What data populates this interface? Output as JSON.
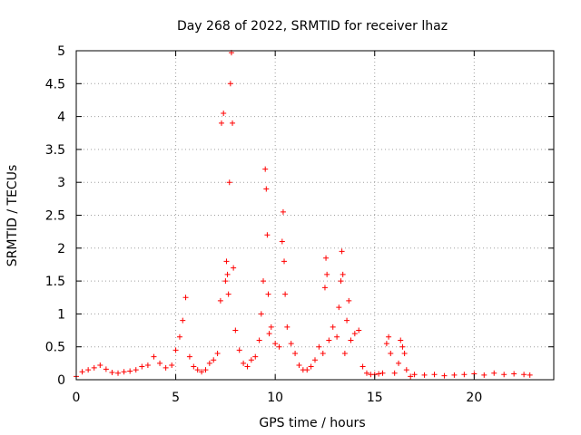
{
  "chart_data": {
    "type": "scatter",
    "title": "Day 268 of 2022, SRMTID for receiver lhaz",
    "xlabel": "GPS time / hours",
    "ylabel": "SRMTID / TECUs",
    "xlim": [
      0,
      24
    ],
    "ylim": [
      0,
      5
    ],
    "xticks": [
      0,
      5,
      10,
      15,
      20
    ],
    "xtick_labels": [
      "0",
      "5",
      "10",
      "15",
      "20"
    ],
    "yticks": [
      0,
      0.5,
      1,
      1.5,
      2,
      2.5,
      3,
      3.5,
      4,
      4.5,
      5
    ],
    "ytick_labels": [
      "0",
      "0.5",
      "1",
      "1.5",
      "2",
      "2.5",
      "3",
      "3.5",
      "4",
      "4.5",
      "5"
    ],
    "grid": true,
    "marker": "+",
    "series": [
      {
        "name": "SRMTID",
        "color": "#ff0000",
        "x": [
          0.0,
          0.3,
          0.6,
          0.9,
          1.2,
          1.5,
          1.8,
          2.1,
          2.4,
          2.7,
          3.0,
          3.3,
          3.6,
          3.9,
          4.2,
          4.5,
          4.8,
          5.0,
          5.2,
          5.35,
          5.5,
          5.7,
          5.9,
          6.1,
          6.3,
          6.5,
          6.7,
          6.9,
          7.1,
          7.25,
          7.3,
          7.4,
          7.5,
          7.55,
          7.6,
          7.65,
          7.7,
          7.75,
          7.8,
          7.85,
          7.9,
          8.0,
          8.2,
          8.4,
          8.6,
          8.8,
          9.0,
          9.2,
          9.3,
          9.4,
          9.5,
          9.55,
          9.6,
          9.65,
          9.7,
          9.8,
          10.0,
          10.2,
          10.35,
          10.4,
          10.45,
          10.5,
          10.6,
          10.8,
          11.0,
          11.2,
          11.4,
          11.6,
          11.8,
          12.0,
          12.2,
          12.4,
          12.5,
          12.55,
          12.6,
          12.7,
          12.9,
          13.1,
          13.2,
          13.3,
          13.35,
          13.4,
          13.5,
          13.6,
          13.7,
          13.8,
          14.0,
          14.2,
          14.4,
          14.6,
          14.8,
          15.0,
          15.2,
          15.4,
          15.6,
          15.7,
          15.8,
          16.0,
          16.2,
          16.3,
          16.4,
          16.5,
          16.6,
          16.8,
          17.0,
          17.5,
          18.0,
          18.5,
          19.0,
          19.5,
          20.0,
          20.5,
          21.0,
          21.5,
          22.0,
          22.5,
          22.8
        ],
        "y": [
          0.05,
          0.12,
          0.15,
          0.18,
          0.22,
          0.16,
          0.11,
          0.1,
          0.12,
          0.13,
          0.15,
          0.2,
          0.22,
          0.35,
          0.25,
          0.18,
          0.22,
          0.45,
          0.65,
          0.9,
          1.25,
          0.35,
          0.2,
          0.15,
          0.12,
          0.15,
          0.25,
          0.3,
          0.4,
          1.2,
          3.9,
          4.05,
          1.5,
          1.8,
          1.6,
          1.3,
          3.0,
          4.5,
          4.97,
          3.9,
          1.7,
          0.75,
          0.45,
          0.25,
          0.2,
          0.3,
          0.35,
          0.6,
          1.0,
          1.5,
          3.2,
          2.9,
          2.2,
          1.3,
          0.7,
          0.8,
          0.55,
          0.5,
          2.1,
          2.55,
          1.8,
          1.3,
          0.8,
          0.55,
          0.4,
          0.22,
          0.15,
          0.15,
          0.2,
          0.3,
          0.5,
          0.4,
          1.4,
          1.85,
          1.6,
          0.6,
          0.8,
          0.65,
          1.1,
          1.5,
          1.95,
          1.6,
          0.4,
          0.9,
          1.2,
          0.6,
          0.7,
          0.75,
          0.2,
          0.1,
          0.08,
          0.08,
          0.09,
          0.1,
          0.55,
          0.65,
          0.4,
          0.1,
          0.25,
          0.6,
          0.5,
          0.4,
          0.15,
          0.05,
          0.08,
          0.07,
          0.08,
          0.06,
          0.07,
          0.08,
          0.09,
          0.07,
          0.1,
          0.08,
          0.09,
          0.08,
          0.07
        ]
      }
    ]
  }
}
